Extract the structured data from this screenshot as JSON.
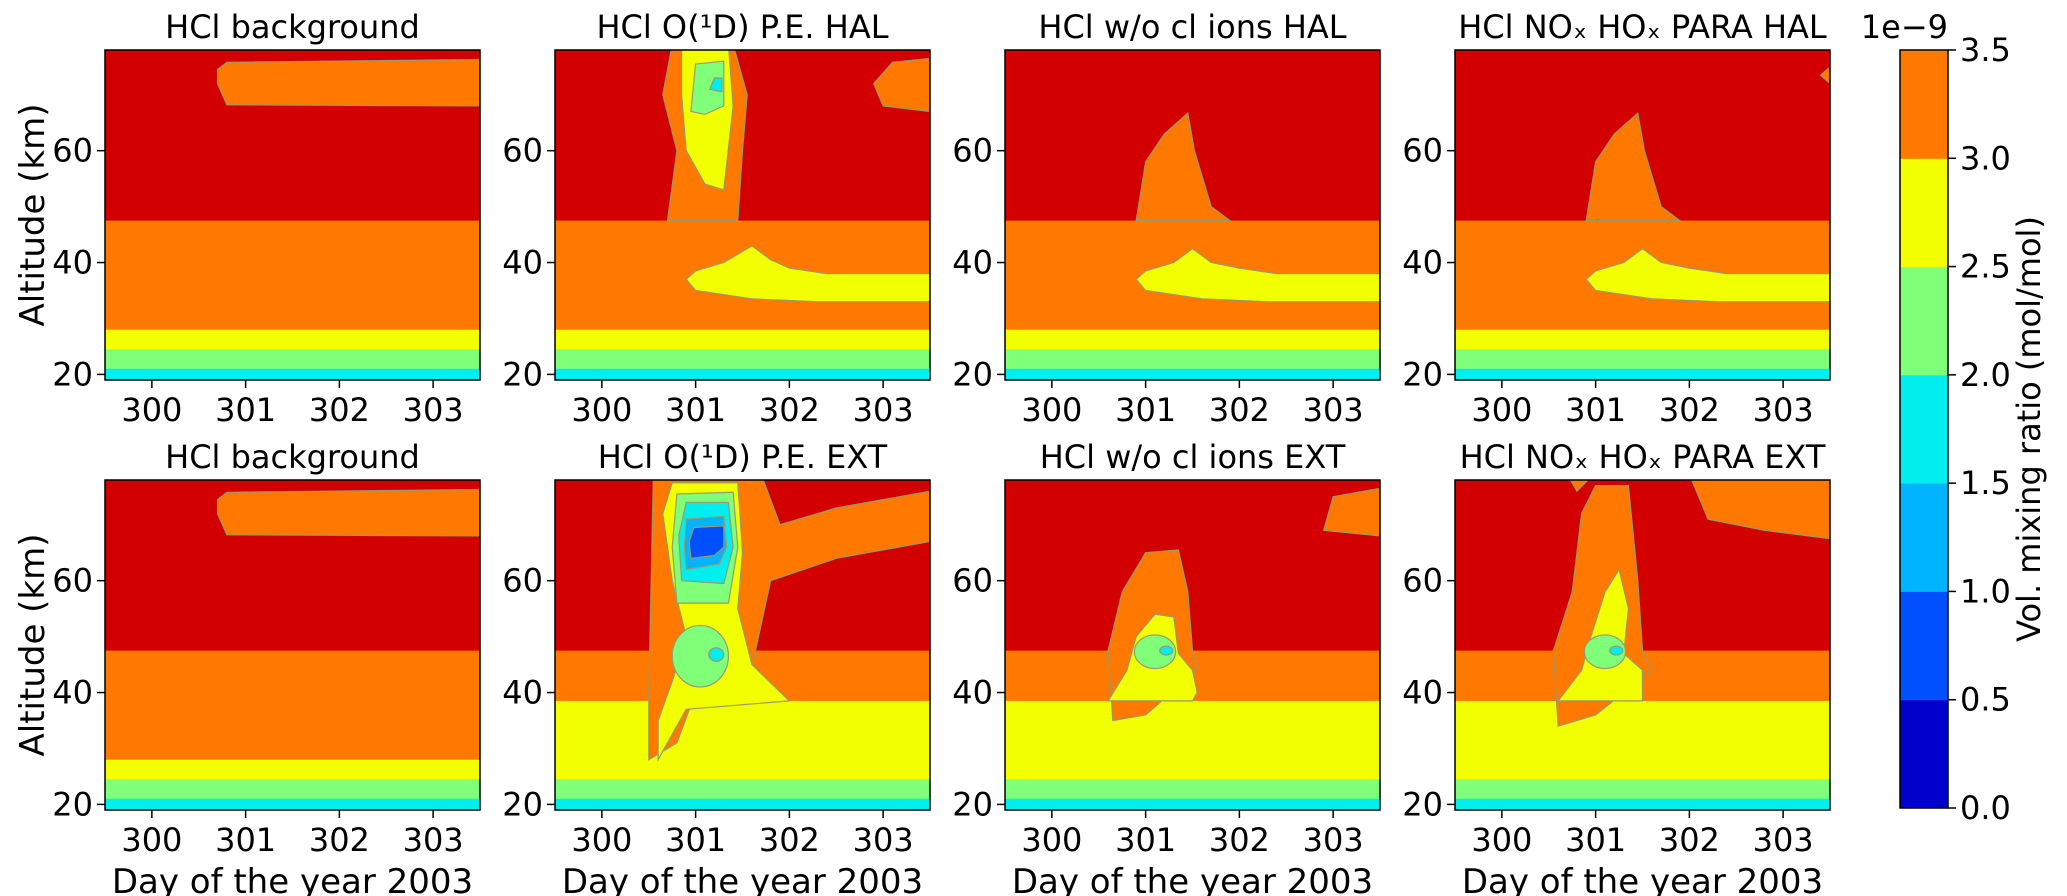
{
  "chart_data": {
    "type": "contour",
    "value_units": "Vol. mixing ratio (mol/mol)",
    "scale_label": "1e−9",
    "colorbar": {
      "levels": [
        0.0,
        0.5,
        1.0,
        1.5,
        2.0,
        2.5,
        3.0,
        3.5
      ],
      "tick_labels": [
        "0.0",
        "0.5",
        "1.0",
        "1.5",
        "2.0",
        "2.5",
        "3.0",
        "3.5"
      ],
      "colors": [
        "#0000cd",
        "#0050ff",
        "#00b4ff",
        "#00eeee",
        "#80ff78",
        "#f2ff00",
        "#ff7800",
        "#d20000"
      ],
      "label": "Vol. mixing ratio (mol/mol)"
    },
    "x_range": [
      299.5,
      303.5
    ],
    "y_range": [
      19,
      78
    ],
    "x_ticks": [
      "300",
      "301",
      "302",
      "303"
    ],
    "y_ticks": [
      "20",
      "40",
      "60"
    ],
    "xlabel": "Day of the year 2003",
    "ylabel": "Altitude (km)",
    "panels": [
      {
        "title": "HCl background",
        "row": 0,
        "col": 0
      },
      {
        "title": "HCl O(¹D) P.E. HAL",
        "row": 0,
        "col": 1
      },
      {
        "title": "HCl w/o cl ions HAL",
        "row": 0,
        "col": 2
      },
      {
        "title": "HCl NOₓ HOₓ PARA HAL",
        "row": 0,
        "col": 3
      },
      {
        "title": "HCl background",
        "row": 1,
        "col": 0
      },
      {
        "title": "HCl O(¹D) P.E. EXT",
        "row": 1,
        "col": 1
      },
      {
        "title": "HCl w/o cl ions EXT",
        "row": 1,
        "col": 2
      },
      {
        "title": "HCl NOₓ HOₓ PARA EXT",
        "row": 1,
        "col": 3
      }
    ]
  }
}
